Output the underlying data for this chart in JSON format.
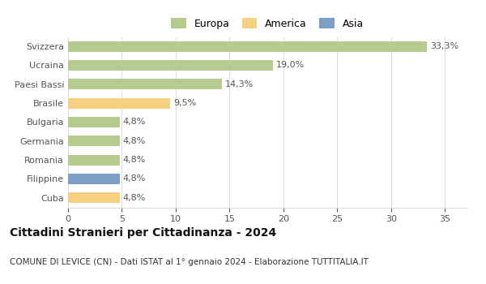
{
  "categories": [
    "Svizzera",
    "Ucraina",
    "Paesi Bassi",
    "Brasile",
    "Bulgaria",
    "Germania",
    "Romania",
    "Filippine",
    "Cuba"
  ],
  "values": [
    33.3,
    19.0,
    14.3,
    9.5,
    4.8,
    4.8,
    4.8,
    4.8,
    4.8
  ],
  "labels": [
    "33,3%",
    "19,0%",
    "14,3%",
    "9,5%",
    "4,8%",
    "4,8%",
    "4,8%",
    "4,8%",
    "4,8%"
  ],
  "continents": [
    "Europa",
    "Europa",
    "Europa",
    "America",
    "Europa",
    "Europa",
    "Europa",
    "Asia",
    "America"
  ],
  "colors": {
    "Europa": "#b5cc8e",
    "America": "#f5d080",
    "Asia": "#7b9fc7"
  },
  "legend_items": [
    "Europa",
    "America",
    "Asia"
  ],
  "legend_colors": [
    "#b5cc8e",
    "#f5d080",
    "#7b9fc7"
  ],
  "xlim": [
    0,
    37
  ],
  "xticks": [
    0,
    5,
    10,
    15,
    20,
    25,
    30,
    35
  ],
  "title": "Cittadini Stranieri per Cittadinanza - 2024",
  "subtitle": "COMUNE DI LEVICE (CN) - Dati ISTAT al 1° gennaio 2024 - Elaborazione TUTTITALIA.IT",
  "title_fontsize": 10,
  "subtitle_fontsize": 7.5,
  "bar_height": 0.55,
  "background_color": "#ffffff",
  "grid_color": "#dddddd",
  "label_color": "#555555",
  "tick_label_color": "#555555",
  "label_fontsize": 8,
  "ytick_fontsize": 8,
  "xtick_fontsize": 8
}
